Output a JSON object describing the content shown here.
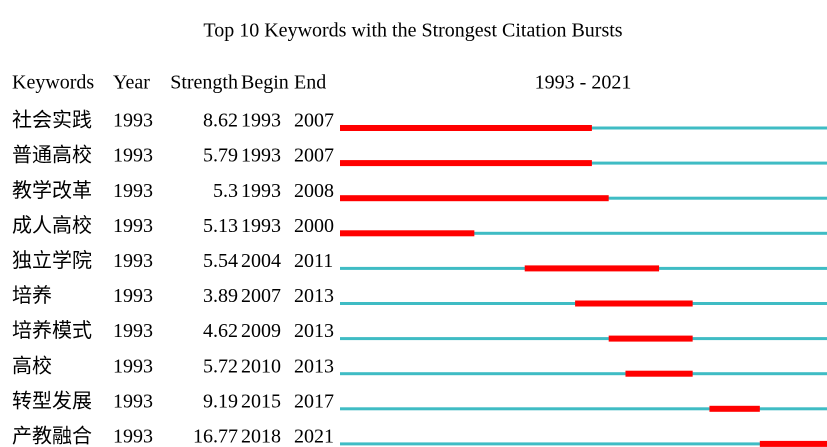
{
  "chart_data": {
    "type": "burst",
    "title": "Top 10 Keywords with the Strongest Citation Bursts",
    "columns": [
      "Keywords",
      "Year",
      "Strength",
      "Begin",
      "End"
    ],
    "range_label": "1993 - 2021",
    "xlim": [
      1993,
      2021
    ],
    "burst_color": "#ff0000",
    "base_color": "#3fbcc4",
    "rows": [
      {
        "keyword": "社会实践",
        "year": 1993,
        "strength": 8.62,
        "begin": 1993,
        "end": 2007
      },
      {
        "keyword": "普通高校",
        "year": 1993,
        "strength": 5.79,
        "begin": 1993,
        "end": 2007
      },
      {
        "keyword": "教学改革",
        "year": 1993,
        "strength": 5.3,
        "begin": 1993,
        "end": 2008
      },
      {
        "keyword": "成人高校",
        "year": 1993,
        "strength": 5.13,
        "begin": 1993,
        "end": 2000
      },
      {
        "keyword": "独立学院",
        "year": 1993,
        "strength": 5.54,
        "begin": 2004,
        "end": 2011
      },
      {
        "keyword": "培养",
        "year": 1993,
        "strength": 3.89,
        "begin": 2007,
        "end": 2013
      },
      {
        "keyword": "培养模式",
        "year": 1993,
        "strength": 4.62,
        "begin": 2009,
        "end": 2013
      },
      {
        "keyword": "高校",
        "year": 1993,
        "strength": 5.72,
        "begin": 2010,
        "end": 2013
      },
      {
        "keyword": "转型发展",
        "year": 1993,
        "strength": 9.19,
        "begin": 2015,
        "end": 2017
      },
      {
        "keyword": "产教融合",
        "year": 1993,
        "strength": 16.77,
        "begin": 2018,
        "end": 2021
      }
    ]
  }
}
